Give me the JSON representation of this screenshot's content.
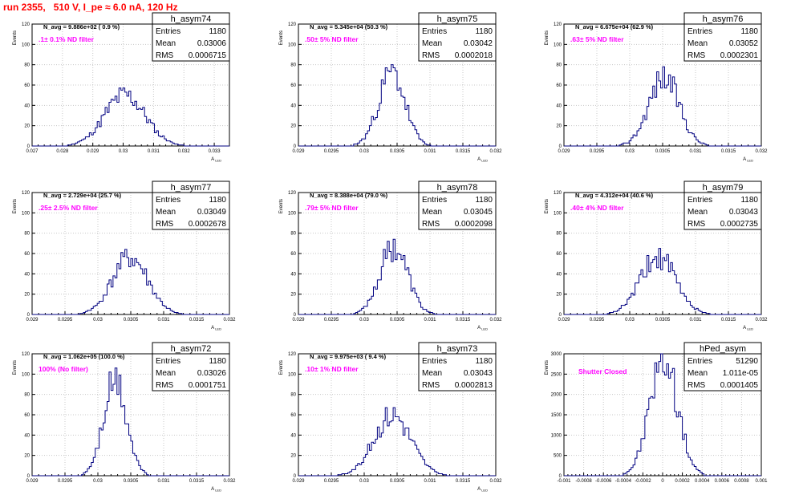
{
  "run_title": "run 2355,   510 V, I_pe ≈ 6.0 nA, 120 Hz",
  "colors": {
    "histogram": "#000080",
    "filter_label": "#ff00ff",
    "title": "#ff0000"
  },
  "chart_data": [
    {
      "type": "bar",
      "title": "h_asym74",
      "ylabel": "Events",
      "xlabel": "A_LED",
      "navg_label": "N_avg = 9.886e+02 ( 0.9 %)",
      "filter_label": ".1± 0.1% ND filter",
      "stats": [
        [
          "Entries",
          "1180"
        ],
        [
          "Mean",
          "0.03006"
        ],
        [
          "RMS",
          "0.0006715"
        ]
      ],
      "xlim": [
        0.027,
        0.0335
      ],
      "ylim": [
        0,
        120
      ],
      "xticks": [
        0.027,
        0.028,
        0.029,
        0.03,
        0.031,
        0.032,
        0.033
      ],
      "xtick_labels": [
        "0.027",
        "0.028",
        "0.029",
        "0.03",
        "0.031",
        "0.032",
        "0.033"
      ],
      "yticks": [
        0,
        20,
        40,
        60,
        80,
        100,
        120
      ],
      "mean": 0.03006,
      "sigma": 0.00067,
      "peak": 50,
      "seed": 11
    },
    {
      "type": "bar",
      "title": "h_asym75",
      "ylabel": "Events",
      "xlabel": "A_LED",
      "navg_label": "N_avg = 5.345e+04 (50.3 %)",
      "filter_label": ".50± 5% ND filter",
      "stats": [
        [
          "Entries",
          "1180"
        ],
        [
          "Mean",
          "0.03042"
        ],
        [
          "RMS",
          "0.0002018"
        ]
      ],
      "xlim": [
        0.029,
        0.032
      ],
      "ylim": [
        0,
        120
      ],
      "xticks": [
        0.029,
        0.0295,
        0.03,
        0.0305,
        0.031,
        0.0315,
        0.032
      ],
      "xtick_labels": [
        "0.029",
        "0.0295",
        "0.03",
        "0.0305",
        "0.031",
        "0.0315",
        "0.032"
      ],
      "yticks": [
        0,
        20,
        40,
        60,
        80,
        100,
        120
      ],
      "mean": 0.03042,
      "sigma": 0.0002,
      "peak": 72,
      "seed": 23
    },
    {
      "type": "bar",
      "title": "h_asym76",
      "ylabel": "Events",
      "xlabel": "A_LED",
      "navg_label": "N_avg = 6.675e+04 (62.9 %)",
      "filter_label": ".63± 5% ND filter",
      "stats": [
        [
          "Entries",
          "1180"
        ],
        [
          "Mean",
          "0.03052"
        ],
        [
          "RMS",
          "0.0002301"
        ]
      ],
      "xlim": [
        0.029,
        0.032
      ],
      "ylim": [
        0,
        120
      ],
      "xticks": [
        0.029,
        0.0295,
        0.03,
        0.0305,
        0.031,
        0.0315,
        0.032
      ],
      "xtick_labels": [
        "0.029",
        "0.0295",
        "0.03",
        "0.0305",
        "0.031",
        "0.0315",
        "0.032"
      ],
      "yticks": [
        0,
        20,
        40,
        60,
        80,
        100,
        120
      ],
      "mean": 0.03052,
      "sigma": 0.00023,
      "peak": 68,
      "seed": 37
    },
    {
      "type": "bar",
      "title": "h_asym77",
      "ylabel": "Events",
      "xlabel": "A_LED",
      "navg_label": "N_avg = 2.729e+04 (25.7 %)",
      "filter_label": ".25± 2.5% ND filter",
      "stats": [
        [
          "Entries",
          "1180"
        ],
        [
          "Mean",
          "0.03049"
        ],
        [
          "RMS",
          "0.0002678"
        ]
      ],
      "xlim": [
        0.029,
        0.032
      ],
      "ylim": [
        0,
        120
      ],
      "xticks": [
        0.029,
        0.0295,
        0.03,
        0.0305,
        0.031,
        0.0315,
        0.032
      ],
      "xtick_labels": [
        "0.029",
        "0.0295",
        "0.03",
        "0.0305",
        "0.031",
        "0.0315",
        "0.032"
      ],
      "yticks": [
        0,
        20,
        40,
        60,
        80,
        100,
        120
      ],
      "mean": 0.03049,
      "sigma": 0.00027,
      "peak": 56,
      "seed": 41
    },
    {
      "type": "bar",
      "title": "h_asym78",
      "ylabel": "Events",
      "xlabel": "A_LED",
      "navg_label": "N_avg = 8.388e+04 (79.0 %)",
      "filter_label": ".79± 5% ND filter",
      "stats": [
        [
          "Entries",
          "1180"
        ],
        [
          "Mean",
          "0.03045"
        ],
        [
          "RMS",
          "0.0002098"
        ]
      ],
      "xlim": [
        0.029,
        0.032
      ],
      "ylim": [
        0,
        120
      ],
      "xticks": [
        0.029,
        0.0295,
        0.03,
        0.0305,
        0.031,
        0.0315,
        0.032
      ],
      "xtick_labels": [
        "0.029",
        "0.0295",
        "0.03",
        "0.0305",
        "0.031",
        "0.0315",
        "0.032"
      ],
      "yticks": [
        0,
        20,
        40,
        60,
        80,
        100,
        120
      ],
      "mean": 0.03045,
      "sigma": 0.00021,
      "peak": 67,
      "seed": 53
    },
    {
      "type": "bar",
      "title": "h_asym79",
      "ylabel": "Events",
      "xlabel": "A_LED",
      "navg_label": "N_avg = 4.312e+04 (40.6 %)",
      "filter_label": ".40± 4% ND filter",
      "stats": [
        [
          "Entries",
          "1180"
        ],
        [
          "Mean",
          "0.03043"
        ],
        [
          "RMS",
          "0.0002735"
        ]
      ],
      "xlim": [
        0.029,
        0.032
      ],
      "ylim": [
        0,
        120
      ],
      "xticks": [
        0.029,
        0.0295,
        0.03,
        0.0305,
        0.031,
        0.0315,
        0.032
      ],
      "xtick_labels": [
        "0.029",
        "0.0295",
        "0.03",
        "0.0305",
        "0.031",
        "0.0315",
        "0.032"
      ],
      "yticks": [
        0,
        20,
        40,
        60,
        80,
        100,
        120
      ],
      "mean": 0.03043,
      "sigma": 0.00027,
      "peak": 56,
      "seed": 61
    },
    {
      "type": "bar",
      "title": "h_asym72",
      "ylabel": "Events",
      "xlabel": "A_LED",
      "navg_label": "N_avg = 1.062e+05 (100.0 %)",
      "filter_label": "100% (No filter)",
      "stats": [
        [
          "Entries",
          "1180"
        ],
        [
          "Mean",
          "0.03026"
        ],
        [
          "RMS",
          "0.0001751"
        ]
      ],
      "xlim": [
        0.029,
        0.032
      ],
      "ylim": [
        0,
        120
      ],
      "xticks": [
        0.029,
        0.0295,
        0.03,
        0.0305,
        0.031,
        0.0315,
        0.032
      ],
      "xtick_labels": [
        "0.029",
        "0.0295",
        "0.03",
        "0.0305",
        "0.031",
        "0.0315",
        "0.032"
      ],
      "yticks": [
        0,
        20,
        40,
        60,
        80,
        100,
        120
      ],
      "mean": 0.03026,
      "sigma": 0.000175,
      "peak": 92,
      "seed": 71
    },
    {
      "type": "bar",
      "title": "h_asym73",
      "ylabel": "Events",
      "xlabel": "A_LED",
      "navg_label": "N_avg = 9.975e+03 ( 9.4 %)",
      "filter_label": ".10± 1% ND filter",
      "stats": [
        [
          "Entries",
          "1180"
        ],
        [
          "Mean",
          "0.03043"
        ],
        [
          "RMS",
          "0.0002813"
        ]
      ],
      "xlim": [
        0.029,
        0.032
      ],
      "ylim": [
        0,
        120
      ],
      "xticks": [
        0.029,
        0.0295,
        0.03,
        0.0305,
        0.031,
        0.0315,
        0.032
      ],
      "xtick_labels": [
        "0.029",
        "0.0295",
        "0.03",
        "0.0305",
        "0.031",
        "0.0315",
        "0.032"
      ],
      "yticks": [
        0,
        20,
        40,
        60,
        80,
        100,
        120
      ],
      "mean": 0.03043,
      "sigma": 0.00028,
      "peak": 60,
      "seed": 83
    },
    {
      "type": "bar",
      "title": "hPed_asym",
      "ylabel": "Events",
      "xlabel": "",
      "navg_label": "",
      "filter_label": "Shutter Closed",
      "stats": [
        [
          "Entries",
          "51290"
        ],
        [
          "Mean",
          "1.011e-05"
        ],
        [
          "RMS",
          "0.0001405"
        ]
      ],
      "xlim": [
        -0.001,
        0.001
      ],
      "ylim": [
        0,
        3000
      ],
      "xticks": [
        -0.001,
        -0.0008,
        -0.0006,
        -0.0004,
        -0.0002,
        0,
        0.0002,
        0.0004,
        0.0006,
        0.0008,
        0.001
      ],
      "xtick_labels": [
        "-0.001",
        "-0.0008",
        "-0.0006",
        "-0.0004",
        "-0.0002",
        "0",
        "0.0002",
        "0.0004",
        "0.0006",
        "0.0008",
        "0.001"
      ],
      "yticks": [
        0,
        500,
        1000,
        1500,
        2000,
        2500,
        3000
      ],
      "ytick_labels": [
        "0",
        "500",
        "1000",
        "1500",
        "2000",
        "2500",
        "3000"
      ],
      "mean": 1.01e-05,
      "sigma": 0.00014,
      "peak": 2900,
      "seed": 97
    }
  ]
}
